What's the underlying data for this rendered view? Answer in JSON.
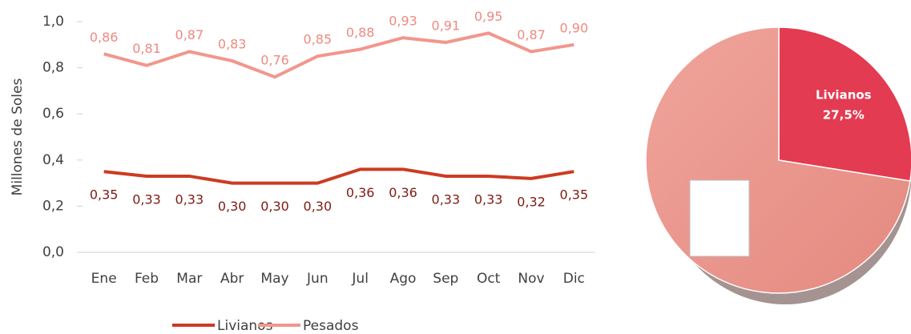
{
  "chart_data": [
    {
      "type": "line",
      "y_label": "Millones de Soles",
      "categories": [
        "Ene",
        "Feb",
        "Mar",
        "Abr",
        "May",
        "Jun",
        "Jul",
        "Ago",
        "Sep",
        "Oct",
        "Nov",
        "Dic"
      ],
      "series": [
        {
          "name": "Livianos",
          "color": "#cc3b22",
          "label_color": "#7c1c12",
          "values": [
            0.35,
            0.33,
            0.33,
            0.3,
            0.3,
            0.3,
            0.36,
            0.36,
            0.33,
            0.33,
            0.32,
            0.35
          ],
          "value_labels": [
            "0,35",
            "0,33",
            "0,33",
            "0,30",
            "0,30",
            "0,30",
            "0,36",
            "0,36",
            "0,33",
            "0,33",
            "0,32",
            "0,35"
          ]
        },
        {
          "name": "Pesados",
          "color": "#f2968c",
          "label_color": "#ee8a80",
          "values": [
            0.86,
            0.81,
            0.87,
            0.83,
            0.76,
            0.85,
            0.88,
            0.93,
            0.91,
            0.95,
            0.87,
            0.9
          ],
          "value_labels": [
            "0,86",
            "0,81",
            "0,87",
            "0,83",
            "0,76",
            "0,85",
            "0,88",
            "0,93",
            "0,91",
            "0,95",
            "0,87",
            "0,90"
          ]
        }
      ],
      "ylim": [
        0,
        1
      ],
      "yticks": [
        {
          "value": 0,
          "label": "0,0"
        },
        {
          "value": 0.2,
          "label": "0,2"
        },
        {
          "value": 0.4,
          "label": "0,4"
        },
        {
          "value": 0.6,
          "label": "0,6"
        },
        {
          "value": 0.8,
          "label": "0,8"
        },
        {
          "value": 1,
          "label": "1,0"
        }
      ],
      "legend": "bottom"
    },
    {
      "type": "pie",
      "categories": [
        "Livianos",
        null
      ],
      "values": [
        27.5,
        72.5
      ],
      "value_labels": [
        "27,5%",
        null
      ],
      "colors": [
        "#e33b52",
        "#ec968d"
      ]
    }
  ]
}
